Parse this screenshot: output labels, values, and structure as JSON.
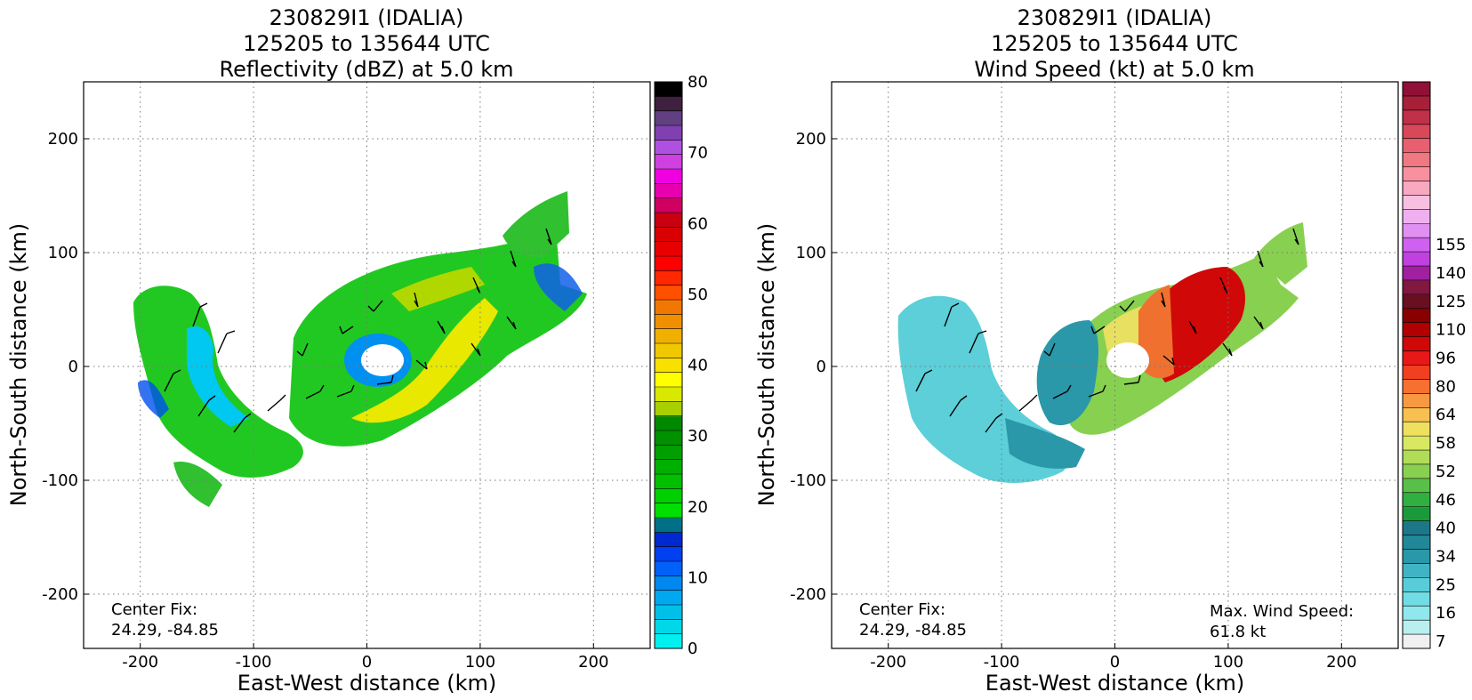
{
  "chart_data": [
    {
      "type": "heatmap",
      "title_lines": [
        "230829I1 (IDALIA)",
        "125205 to 135644 UTC",
        "Reflectivity (dBZ) at 5.0 km"
      ],
      "xlabel": "East-West distance (km)",
      "ylabel": "North-South distance (km)",
      "xlim": [
        -250,
        250
      ],
      "ylim": [
        -250,
        250
      ],
      "xticks": [
        -200,
        -100,
        0,
        100,
        200
      ],
      "yticks": [
        -200,
        -100,
        0,
        100,
        200
      ],
      "grid": true,
      "annotation_lines": [
        "Center Fix:",
        "24.29, -84.85"
      ],
      "colorbar": {
        "min": 0,
        "max": 80,
        "ticks": [
          0,
          10,
          20,
          30,
          40,
          50,
          60,
          70,
          80
        ],
        "colors": [
          "#00f0f0",
          "#00d8e8",
          "#00c0e8",
          "#00a8f0",
          "#0088f0",
          "#0060f8",
          "#0040f0",
          "#0028d0",
          "#007088",
          "#00e000",
          "#00d000",
          "#00c000",
          "#00b000",
          "#00a000",
          "#009000",
          "#008800",
          "#a8d000",
          "#d8e800",
          "#ffff00",
          "#f8e000",
          "#f0c800",
          "#f0b000",
          "#f09000",
          "#f07800",
          "#ff5000",
          "#ff2800",
          "#ff0000",
          "#e80000",
          "#d80000",
          "#c80010",
          "#d00060",
          "#e800b0",
          "#f000e0",
          "#d040e0",
          "#b050e0",
          "#8040b0",
          "#604080",
          "#402040",
          "#000000"
        ]
      }
    },
    {
      "type": "heatmap",
      "title_lines": [
        "230829I1 (IDALIA)",
        "125205 to 135644 UTC",
        "Wind Speed (kt) at 5.0 km"
      ],
      "xlabel": "East-West distance (km)",
      "ylabel": "North-South distance (km)",
      "xlim": [
        -250,
        250
      ],
      "ylim": [
        -250,
        250
      ],
      "xticks": [
        -200,
        -100,
        0,
        100,
        200
      ],
      "yticks": [
        -200,
        -100,
        0,
        100,
        200
      ],
      "grid": true,
      "annotation_lines": [
        "Center Fix:",
        "24.29, -84.85"
      ],
      "annotation2_lines": [
        "Max. Wind Speed:",
        "61.8 kt"
      ],
      "max_wind_kt": 61.8,
      "colorbar": {
        "tick_labels": [
          "7",
          "16",
          "25",
          "34",
          "40",
          "46",
          "52",
          "58",
          "64",
          "80",
          "96",
          "110",
          "125",
          "140",
          "155"
        ],
        "colors": [
          "#f0f0f0",
          "#b8f0f0",
          "#90e8ec",
          "#70dce4",
          "#58ccd8",
          "#40b4c4",
          "#2a98a8",
          "#208898",
          "#1c7888",
          "#1a9a3a",
          "#30b040",
          "#58c048",
          "#88d050",
          "#b0dc58",
          "#d8e860",
          "#f0e060",
          "#f8c050",
          "#f89840",
          "#f87030",
          "#f04020",
          "#e81818",
          "#d00808",
          "#b00000",
          "#880000",
          "#681020",
          "#801840",
          "#a020a0",
          "#c040e0",
          "#d060f0",
          "#e090f0",
          "#f0b0f0",
          "#f8c0e0",
          "#f8a8c0",
          "#f890a0",
          "#f07880",
          "#e86070",
          "#d84858",
          "#c03048",
          "#a82038",
          "#901038"
        ]
      }
    }
  ]
}
